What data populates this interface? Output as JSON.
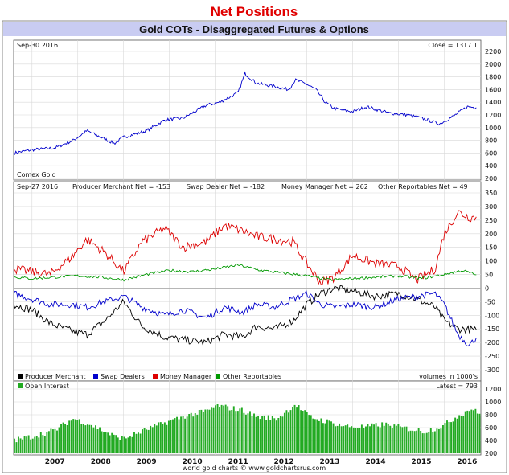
{
  "header": {
    "title": "Net Positions",
    "subtitle": "Gold COTs - Disaggregated Futures & Options",
    "title_color": "#e00000",
    "subtitle_bg": "#c9ccf2"
  },
  "footer": "world gold charts © www.goldchartsrus.com",
  "x_years": [
    "2007",
    "2008",
    "2009",
    "2010",
    "2011",
    "2012",
    "2013",
    "2014",
    "2015",
    "2016"
  ],
  "chart_data": [
    {
      "type": "line",
      "title": "Gold COTs - Disaggregated Futures & Options",
      "corner_left": "Sep-30  2016",
      "corner_right": "Close = 1317.1",
      "source_label": "Comex Gold",
      "xrange": [
        2006.6,
        2016.8
      ],
      "ylim": [
        200,
        2200
      ],
      "yticks": [
        200,
        400,
        600,
        800,
        1000,
        1200,
        1400,
        1600,
        1800,
        2000,
        2200
      ],
      "series": [
        {
          "color": "#0000cc",
          "x": [
            2006.6,
            2007.0,
            2007.5,
            2007.9,
            2008.2,
            2008.8,
            2009.0,
            2009.5,
            2009.9,
            2010.3,
            2010.8,
            2011.1,
            2011.5,
            2011.65,
            2011.9,
            2012.3,
            2012.6,
            2012.75,
            2012.95,
            2013.2,
            2013.4,
            2013.6,
            2014.0,
            2014.3,
            2014.8,
            2015.2,
            2015.5,
            2015.9,
            2016.2,
            2016.5,
            2016.7
          ],
          "values": [
            600,
            650,
            680,
            800,
            950,
            750,
            850,
            950,
            1120,
            1150,
            1350,
            1400,
            1550,
            1850,
            1700,
            1650,
            1600,
            1750,
            1700,
            1600,
            1400,
            1300,
            1250,
            1330,
            1230,
            1200,
            1150,
            1060,
            1180,
            1330,
            1317
          ]
        }
      ]
    },
    {
      "type": "line",
      "corner_left": "Sep-27  2016",
      "ylim": [
        -300,
        350
      ],
      "yticks": [
        -300,
        -250,
        -200,
        -150,
        -100,
        -50,
        0,
        50,
        100,
        150,
        200,
        250,
        300,
        350
      ],
      "volume_note": "volumes in 1000's",
      "stats": [
        {
          "label": "Producer Merchant Net = -153"
        },
        {
          "label": "Swap Dealer Net = -182"
        },
        {
          "label": "Money Manager Net = 262"
        },
        {
          "label": "Other Reportables Net = 49"
        }
      ],
      "series": [
        {
          "name": "Producer Merchant",
          "color": "#000000",
          "x": [
            2006.6,
            2007.0,
            2007.4,
            2007.9,
            2008.2,
            2008.6,
            2009.0,
            2009.4,
            2009.9,
            2010.3,
            2010.8,
            2011.2,
            2011.6,
            2011.9,
            2012.3,
            2012.7,
            2013.0,
            2013.3,
            2013.6,
            2014.0,
            2014.5,
            2015.0,
            2015.4,
            2015.8,
            2016.0,
            2016.3,
            2016.7
          ],
          "values": [
            -60,
            -80,
            -130,
            -160,
            -170,
            -120,
            -50,
            -140,
            -180,
            -190,
            -200,
            -170,
            -180,
            -140,
            -150,
            -120,
            -60,
            -20,
            0,
            -10,
            -30,
            -20,
            -40,
            -70,
            -120,
            -150,
            -153
          ]
        },
        {
          "name": "Swap Dealers",
          "color": "#0000cc",
          "x": [
            2006.6,
            2007.0,
            2007.4,
            2007.9,
            2008.2,
            2008.6,
            2009.0,
            2009.4,
            2009.9,
            2010.3,
            2010.8,
            2011.2,
            2011.6,
            2011.9,
            2012.3,
            2012.7,
            2013.0,
            2013.3,
            2013.6,
            2014.0,
            2014.5,
            2015.0,
            2015.4,
            2015.8,
            2016.0,
            2016.3,
            2016.55,
            2016.7
          ],
          "values": [
            -20,
            -40,
            -60,
            -60,
            -70,
            -50,
            -30,
            -70,
            -100,
            -80,
            -110,
            -70,
            -90,
            -60,
            -70,
            -40,
            -20,
            -60,
            -70,
            -60,
            -70,
            -40,
            -30,
            -20,
            -60,
            -170,
            -210,
            -182
          ]
        },
        {
          "name": "Money Manager",
          "color": "#dd0000",
          "x": [
            2006.6,
            2007.0,
            2007.4,
            2007.9,
            2008.2,
            2008.6,
            2009.0,
            2009.4,
            2009.9,
            2010.3,
            2010.8,
            2011.2,
            2011.6,
            2011.9,
            2012.3,
            2012.7,
            2013.0,
            2013.3,
            2013.6,
            2014.0,
            2014.5,
            2015.0,
            2015.4,
            2015.8,
            2016.0,
            2016.3,
            2016.55,
            2016.7
          ],
          "values": [
            70,
            60,
            50,
            120,
            180,
            130,
            60,
            170,
            220,
            150,
            170,
            230,
            210,
            190,
            180,
            170,
            90,
            20,
            40,
            120,
            90,
            80,
            30,
            70,
            200,
            280,
            260,
            262
          ]
        },
        {
          "name": "Other Reportables",
          "color": "#009900",
          "x": [
            2006.6,
            2007.0,
            2007.5,
            2008.0,
            2008.5,
            2009.0,
            2009.5,
            2010.0,
            2010.5,
            2011.0,
            2011.5,
            2012.0,
            2012.5,
            2013.0,
            2013.5,
            2014.0,
            2014.5,
            2015.0,
            2015.5,
            2016.0,
            2016.4,
            2016.7
          ],
          "values": [
            40,
            35,
            40,
            45,
            40,
            30,
            50,
            65,
            60,
            70,
            85,
            65,
            55,
            45,
            30,
            35,
            40,
            45,
            35,
            50,
            65,
            49
          ]
        }
      ]
    },
    {
      "type": "bar",
      "title": "Open Interest",
      "latest_label": "Latest = 793",
      "ylim": [
        200,
        1200
      ],
      "yticks": [
        200,
        400,
        600,
        800,
        1000,
        1200
      ],
      "color": "#22aa22",
      "x": [
        2006.6,
        2007.0,
        2007.5,
        2007.9,
        2008.3,
        2008.8,
        2009.0,
        2009.5,
        2009.9,
        2010.3,
        2010.8,
        2011.0,
        2011.5,
        2011.9,
        2012.3,
        2012.7,
        2013.0,
        2013.4,
        2013.8,
        2014.2,
        2014.6,
        2015.0,
        2015.5,
        2015.9,
        2016.2,
        2016.5,
        2016.7
      ],
      "values": [
        400,
        460,
        560,
        740,
        640,
        460,
        430,
        580,
        680,
        780,
        860,
        940,
        880,
        770,
        740,
        960,
        770,
        690,
        620,
        610,
        650,
        600,
        540,
        630,
        780,
        900,
        793
      ]
    }
  ]
}
